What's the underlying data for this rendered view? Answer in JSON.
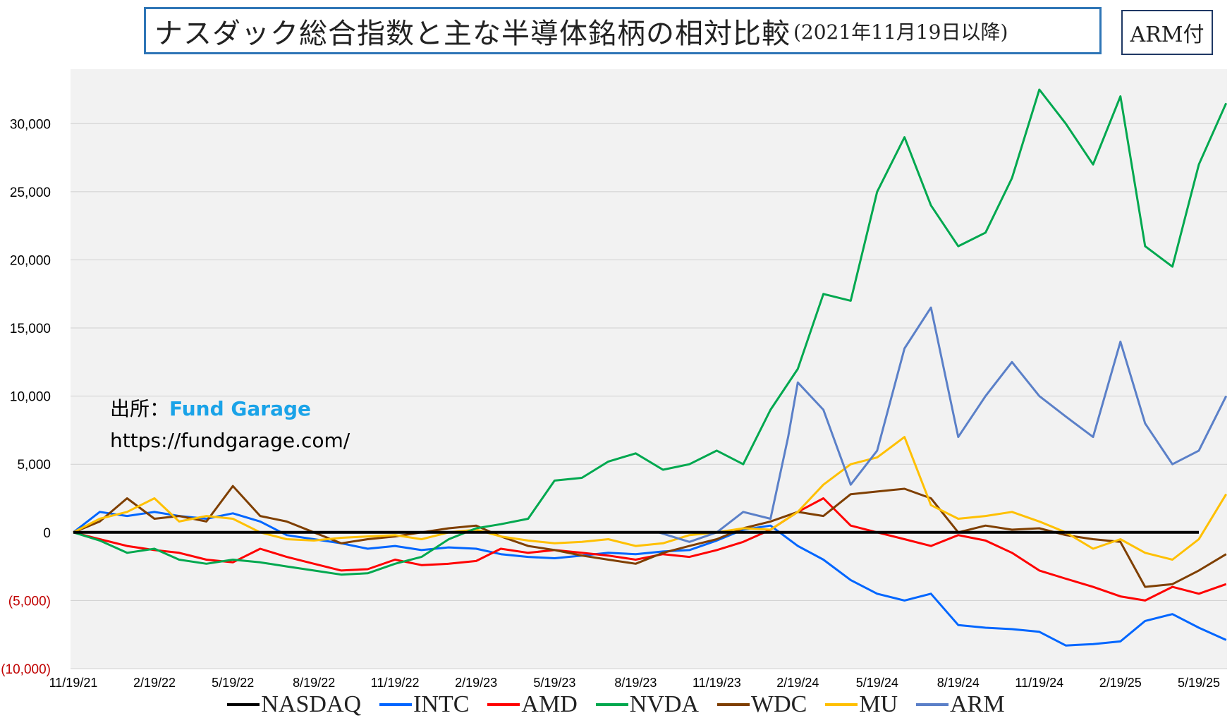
{
  "header": {
    "title": "ナスダック総合指数と主な半導体銘柄の相対比較",
    "subtitle": "(2021年11月19日以降)",
    "badge": "ARM付"
  },
  "source": {
    "label": "出所：",
    "brand": "Fund Garage",
    "url": "https://fundgarage.com/"
  },
  "chart_data": {
    "type": "line",
    "title": "ナスダック総合指数と主な半導体銘柄の相対比較 (2021年11月19日以降)",
    "xlabel": "",
    "ylabel": "",
    "x_ticks": [
      "11/19/21",
      "2/19/22",
      "5/19/22",
      "8/19/22",
      "11/19/22",
      "2/19/23",
      "5/19/23",
      "8/19/23",
      "11/19/23",
      "2/19/24",
      "5/19/24",
      "8/19/24",
      "11/19/24",
      "2/19/25",
      "5/19/25"
    ],
    "y_ticks": [
      {
        "value": 30000,
        "label": "30,000"
      },
      {
        "value": 25000,
        "label": "25,000"
      },
      {
        "value": 20000,
        "label": "20,000"
      },
      {
        "value": 15000,
        "label": "15,000"
      },
      {
        "value": 10000,
        "label": "10,000"
      },
      {
        "value": 5000,
        "label": "5,000"
      },
      {
        "value": 0,
        "label": "0"
      },
      {
        "value": -5000,
        "label": "(5,000)"
      },
      {
        "value": -10000,
        "label": "(10,000)"
      }
    ],
    "ylim": [
      -10000,
      34000
    ],
    "grid": true,
    "legend_position": "bottom",
    "series": [
      {
        "name": "NASDAQ",
        "color": "#000000",
        "x": [
          "11/19/21",
          "5/19/25"
        ],
        "values": [
          0,
          0
        ]
      },
      {
        "name": "INTC",
        "color": "#0066ff",
        "x": [
          "11/19/21",
          "12/19/21",
          "1/19/22",
          "2/19/22",
          "3/19/22",
          "4/19/22",
          "5/19/22",
          "6/19/22",
          "7/19/22",
          "8/19/22",
          "9/19/22",
          "10/19/22",
          "11/19/22",
          "12/19/22",
          "1/19/23",
          "2/19/23",
          "3/19/23",
          "4/19/23",
          "5/19/23",
          "6/19/23",
          "7/19/23",
          "8/19/23",
          "9/19/23",
          "10/19/23",
          "11/19/23",
          "12/19/23",
          "1/19/24",
          "2/19/24",
          "3/19/24",
          "4/19/24",
          "5/19/24",
          "6/19/24",
          "7/19/24",
          "8/19/24",
          "9/19/24",
          "10/19/24",
          "11/19/24",
          "12/19/24",
          "1/19/25",
          "2/19/25",
          "3/19/25",
          "4/19/25",
          "5/19/25",
          "6/19/25"
        ],
        "values": [
          0,
          1500,
          1200,
          1500,
          1200,
          1000,
          1400,
          800,
          -200,
          -500,
          -800,
          -1200,
          -1000,
          -1300,
          -1100,
          -1200,
          -1600,
          -1800,
          -1900,
          -1700,
          -1500,
          -1600,
          -1400,
          -1300,
          -600,
          200,
          500,
          -1000,
          -2000,
          -3500,
          -4500,
          -5000,
          -4500,
          -6800,
          -7000,
          -7100,
          -7300,
          -8300,
          -8200,
          -8000,
          -6500,
          -6000,
          -7000,
          -7900
        ]
      },
      {
        "name": "AMD",
        "color": "#ff0000",
        "x": [
          "11/19/21",
          "12/19/21",
          "1/19/22",
          "2/19/22",
          "3/19/22",
          "4/19/22",
          "5/19/22",
          "6/19/22",
          "7/19/22",
          "8/19/22",
          "9/19/22",
          "10/19/22",
          "11/19/22",
          "12/19/22",
          "1/19/23",
          "2/19/23",
          "3/19/23",
          "4/19/23",
          "5/19/23",
          "6/19/23",
          "7/19/23",
          "8/19/23",
          "9/19/23",
          "10/19/23",
          "11/19/23",
          "12/19/23",
          "1/19/24",
          "2/19/24",
          "3/19/24",
          "4/19/24",
          "5/19/24",
          "6/19/24",
          "7/19/24",
          "8/19/24",
          "9/19/24",
          "10/19/24",
          "11/19/24",
          "12/19/24",
          "1/19/25",
          "2/19/25",
          "3/19/25",
          "4/19/25",
          "5/19/25",
          "6/19/25"
        ],
        "values": [
          0,
          -500,
          -1000,
          -1300,
          -1500,
          -2000,
          -2200,
          -1200,
          -1800,
          -2300,
          -2800,
          -2700,
          -2000,
          -2400,
          -2300,
          -2100,
          -1200,
          -1500,
          -1300,
          -1500,
          -1700,
          -2000,
          -1600,
          -1800,
          -1300,
          -700,
          200,
          1500,
          2500,
          500,
          0,
          -500,
          -1000,
          -200,
          -600,
          -1500,
          -2800,
          -3400,
          -4000,
          -4700,
          -5000,
          -4000,
          -4500,
          -3800
        ]
      },
      {
        "name": "NVDA",
        "color": "#00a84f",
        "x": [
          "11/19/21",
          "12/19/21",
          "1/19/22",
          "2/19/22",
          "3/19/22",
          "4/19/22",
          "5/19/22",
          "6/19/22",
          "7/19/22",
          "8/19/22",
          "9/19/22",
          "10/19/22",
          "11/19/22",
          "12/19/22",
          "1/19/23",
          "2/19/23",
          "3/19/23",
          "4/19/23",
          "5/19/23",
          "6/19/23",
          "7/19/23",
          "8/19/23",
          "9/19/23",
          "10/19/23",
          "11/19/23",
          "12/19/23",
          "1/19/24",
          "2/19/24",
          "3/19/24",
          "4/19/24",
          "5/19/24",
          "6/19/24",
          "7/19/24",
          "8/19/24",
          "9/19/24",
          "10/19/24",
          "11/19/24",
          "12/19/24",
          "1/19/25",
          "2/19/25",
          "3/19/25",
          "4/19/25",
          "5/19/25",
          "6/19/25"
        ],
        "values": [
          0,
          -600,
          -1500,
          -1200,
          -2000,
          -2300,
          -2000,
          -2200,
          -2500,
          -2800,
          -3100,
          -3000,
          -2300,
          -1800,
          -500,
          300,
          600,
          1000,
          3800,
          4000,
          5200,
          5800,
          4600,
          5000,
          6000,
          5000,
          9000,
          12000,
          17500,
          17000,
          25000,
          29000,
          24000,
          21000,
          22000,
          26000,
          32500,
          30000,
          27000,
          32000,
          21000,
          19500,
          27000,
          31500
        ]
      },
      {
        "name": "WDC",
        "color": "#7f3f00",
        "x": [
          "11/19/21",
          "12/19/21",
          "1/19/22",
          "2/19/22",
          "3/19/22",
          "4/19/22",
          "5/19/22",
          "6/19/22",
          "7/19/22",
          "8/19/22",
          "9/19/22",
          "10/19/22",
          "11/19/22",
          "12/19/22",
          "1/19/23",
          "2/19/23",
          "3/19/23",
          "4/19/23",
          "5/19/23",
          "6/19/23",
          "7/19/23",
          "8/19/23",
          "9/19/23",
          "10/19/23",
          "11/19/23",
          "12/19/23",
          "1/19/24",
          "2/19/24",
          "3/19/24",
          "4/19/24",
          "5/19/24",
          "6/19/24",
          "7/19/24",
          "8/19/24",
          "9/19/24",
          "10/19/24",
          "11/19/24",
          "12/19/24",
          "1/19/25",
          "2/19/25",
          "3/19/25",
          "4/19/25",
          "5/19/25",
          "6/19/25"
        ],
        "values": [
          0,
          800,
          2500,
          1000,
          1200,
          800,
          3400,
          1200,
          800,
          0,
          -800,
          -500,
          -300,
          0,
          300,
          500,
          -300,
          -1000,
          -1300,
          -1700,
          -2000,
          -2300,
          -1500,
          -1000,
          -500,
          300,
          800,
          1500,
          1200,
          2800,
          3000,
          3200,
          2500,
          0,
          500,
          200,
          300,
          -200,
          -500,
          -700,
          -4000,
          -3800,
          -2800,
          -1600
        ]
      },
      {
        "name": "MU",
        "color": "#ffc000",
        "x": [
          "11/19/21",
          "12/19/21",
          "1/19/22",
          "2/19/22",
          "3/19/22",
          "4/19/22",
          "5/19/22",
          "6/19/22",
          "7/19/22",
          "8/19/22",
          "9/19/22",
          "10/19/22",
          "11/19/22",
          "12/19/22",
          "1/19/23",
          "2/19/23",
          "3/19/23",
          "4/19/23",
          "5/19/23",
          "6/19/23",
          "7/19/23",
          "8/19/23",
          "9/19/23",
          "10/19/23",
          "11/19/23",
          "12/19/23",
          "1/19/24",
          "2/19/24",
          "3/19/24",
          "4/19/24",
          "5/19/24",
          "6/19/24",
          "7/19/24",
          "8/19/24",
          "9/19/24",
          "10/19/24",
          "11/19/24",
          "12/19/24",
          "1/19/25",
          "2/19/25",
          "3/19/25",
          "4/19/25",
          "5/19/25",
          "6/19/25"
        ],
        "values": [
          0,
          1000,
          1500,
          2500,
          800,
          1200,
          1000,
          0,
          -500,
          -600,
          -400,
          -300,
          -200,
          -500,
          0,
          200,
          -300,
          -600,
          -800,
          -700,
          -500,
          -1000,
          -800,
          -200,
          0,
          300,
          200,
          1500,
          3500,
          5000,
          5500,
          7000,
          2000,
          1000,
          1200,
          1500,
          800,
          0,
          -1200,
          -500,
          -1500,
          -2000,
          -500,
          2800
        ]
      },
      {
        "name": "ARM",
        "color": "#5b80c8",
        "x": [
          "9/14/23",
          "10/19/23",
          "11/19/23",
          "12/19/23",
          "1/19/24",
          "2/8/24",
          "2/19/24",
          "3/19/24",
          "4/19/24",
          "5/19/24",
          "6/19/24",
          "7/19/24",
          "8/19/24",
          "9/19/24",
          "10/19/24",
          "11/19/24",
          "12/19/24",
          "1/19/25",
          "2/19/25",
          "3/19/25",
          "4/19/25",
          "5/19/25",
          "6/19/25"
        ],
        "values": [
          0,
          -700,
          0,
          1500,
          1000,
          7000,
          11000,
          9000,
          3500,
          6000,
          13500,
          16500,
          7000,
          10000,
          12500,
          10000,
          8500,
          7000,
          14000,
          8000,
          5000,
          6000,
          10000
        ]
      }
    ]
  }
}
